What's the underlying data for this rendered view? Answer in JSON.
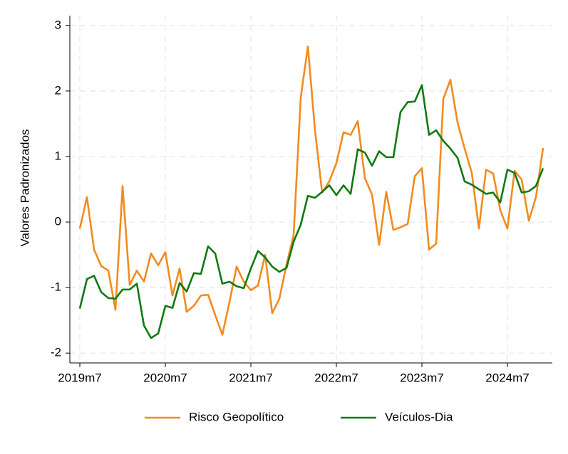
{
  "chart_data": {
    "type": "line",
    "ylabel": "Valores Padronizados",
    "categories": [
      "2019m7",
      null,
      null,
      null,
      null,
      null,
      null,
      null,
      null,
      null,
      null,
      null,
      "2020m7",
      null,
      null,
      null,
      null,
      null,
      null,
      null,
      null,
      null,
      null,
      null,
      "2021m7",
      null,
      null,
      null,
      null,
      null,
      null,
      null,
      null,
      null,
      null,
      null,
      "2022m7",
      null,
      null,
      null,
      null,
      null,
      null,
      null,
      null,
      null,
      null,
      null,
      "2023m7",
      null,
      null,
      null,
      null,
      null,
      null,
      null,
      null,
      null,
      null,
      null,
      "2024m7",
      null,
      null,
      null,
      null,
      null
    ],
    "series": [
      {
        "name": "Risco Geopolítico",
        "color": "#f28b1e",
        "values": [
          -0.1,
          0.38,
          -0.42,
          -0.67,
          -0.74,
          -1.34,
          0.55,
          -0.96,
          -0.74,
          -0.91,
          -0.48,
          -0.66,
          -0.46,
          -1.12,
          -0.71,
          -1.37,
          -1.28,
          -1.12,
          -1.11,
          -1.42,
          -1.72,
          -1.22,
          -0.68,
          -0.91,
          -1.04,
          -0.97,
          -0.5,
          -1.39,
          -1.17,
          -0.65,
          -0.2,
          1.9,
          2.68,
          1.4,
          0.45,
          0.62,
          0.9,
          1.37,
          1.33,
          1.54,
          0.67,
          0.42,
          -0.35,
          0.46,
          -0.12,
          -0.08,
          -0.03,
          0.7,
          0.82,
          -0.42,
          -0.33,
          1.88,
          2.17,
          1.52,
          1.12,
          0.75,
          -0.1,
          0.8,
          0.74,
          0.18,
          -0.1,
          0.78,
          0.65,
          0.02,
          0.38,
          1.13
        ]
      },
      {
        "name": "Veículos-Dia",
        "color": "#0f7a0f",
        "values": [
          -1.32,
          -0.87,
          -0.82,
          -1.07,
          -1.16,
          -1.17,
          -1.03,
          -1.03,
          -0.94,
          -1.58,
          -1.77,
          -1.7,
          -1.28,
          -1.31,
          -0.93,
          -1.06,
          -0.78,
          -0.79,
          -0.37,
          -0.48,
          -0.94,
          -0.91,
          -0.98,
          -1.01,
          -0.71,
          -0.44,
          -0.54,
          -0.68,
          -0.76,
          -0.7,
          -0.3,
          -0.04,
          0.4,
          0.37,
          0.46,
          0.56,
          0.41,
          0.56,
          0.43,
          1.11,
          1.06,
          0.86,
          1.08,
          0.99,
          0.99,
          1.68,
          1.83,
          1.84,
          2.09,
          1.33,
          1.4,
          1.24,
          1.12,
          0.98,
          0.62,
          0.57,
          0.5,
          0.43,
          0.45,
          0.3,
          0.8,
          0.75,
          0.45,
          0.47,
          0.55,
          0.82
        ]
      }
    ],
    "ylim": [
      -2.15,
      3.15
    ],
    "yticks": [
      -2,
      -1,
      0,
      1,
      2,
      3
    ],
    "grid": true,
    "legend": "bottom"
  }
}
